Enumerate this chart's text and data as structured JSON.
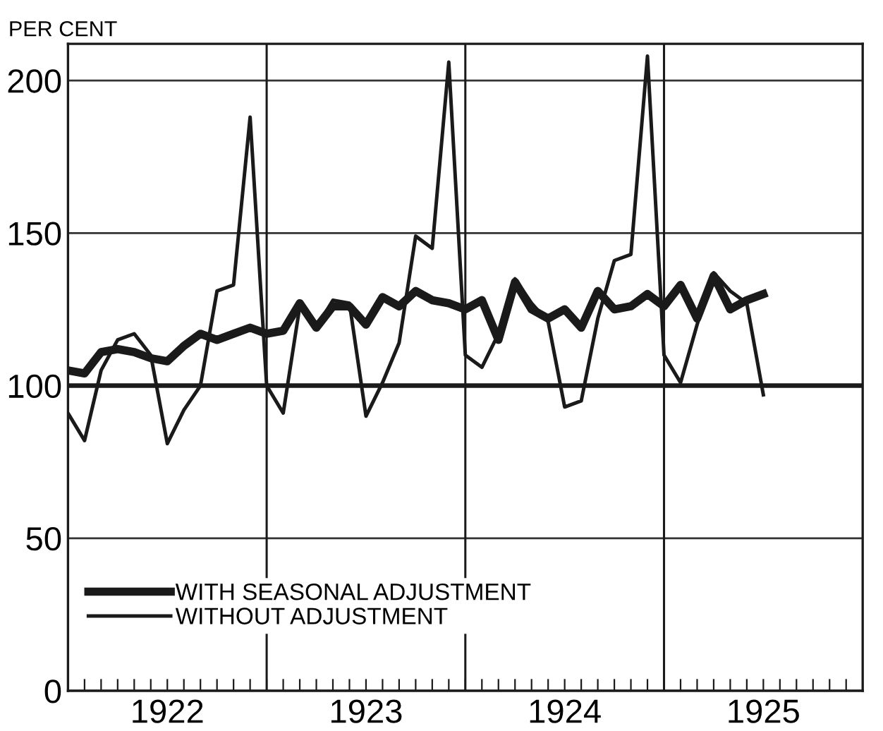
{
  "chart_data": {
    "type": "line",
    "ylabel": "PER CENT",
    "x": [
      "1922-01",
      "1922-02",
      "1922-03",
      "1922-04",
      "1922-05",
      "1922-06",
      "1922-07",
      "1922-08",
      "1922-09",
      "1922-10",
      "1922-11",
      "1922-12",
      "1923-01",
      "1923-02",
      "1923-03",
      "1923-04",
      "1923-05",
      "1923-06",
      "1923-07",
      "1923-08",
      "1923-09",
      "1923-10",
      "1923-11",
      "1923-12",
      "1924-01",
      "1924-02",
      "1924-03",
      "1924-04",
      "1924-05",
      "1924-06",
      "1924-07",
      "1924-08",
      "1924-09",
      "1924-10",
      "1924-11",
      "1924-12",
      "1925-01",
      "1925-02",
      "1925-03",
      "1925-04",
      "1925-05",
      "1925-06",
      "1925-07"
    ],
    "series": [
      {
        "name": "WITH SEASONAL ADJUSTMENT",
        "color": "#1a1a1a",
        "values": [
          105,
          104,
          111,
          112,
          111,
          109,
          108,
          113,
          117,
          115,
          117,
          119,
          117,
          118,
          127,
          119,
          126,
          126,
          120,
          129,
          126,
          131,
          128,
          127,
          125,
          128,
          115,
          134,
          125,
          122,
          125,
          119,
          131,
          125,
          126,
          130,
          126,
          133,
          122,
          136,
          125,
          128,
          130
        ]
      },
      {
        "name": "WITHOUT ADJUSTMENT",
        "color": "#1a1a1a",
        "values": [
          91,
          82,
          105,
          115,
          117,
          110,
          81,
          92,
          100,
          131,
          133,
          188,
          100,
          91,
          126,
          119,
          128,
          127,
          90,
          101,
          114,
          149,
          145,
          206,
          110,
          106,
          117,
          135,
          127,
          121,
          93,
          95,
          122,
          141,
          143,
          208,
          110,
          101,
          120,
          137,
          131,
          127,
          97
        ]
      }
    ],
    "xlim": [
      "1922-01-01",
      "1926-01-01"
    ],
    "xticks": [
      {
        "value": "1922-07-01",
        "label": "1922"
      },
      {
        "value": "1923-07-01",
        "label": "1923"
      },
      {
        "value": "1924-07-01",
        "label": "1924"
      },
      {
        "value": "1925-07-01",
        "label": "1925"
      },
      {
        "value": "1922-02-01",
        "label": null
      },
      {
        "value": "1922-03-01",
        "label": null
      },
      {
        "value": "1922-04-01",
        "label": null
      },
      {
        "value": "1922-05-01",
        "label": null
      },
      {
        "value": "1922-06-01",
        "label": null
      },
      {
        "value": "1922-08-01",
        "label": null
      },
      {
        "value": "1922-09-01",
        "label": null
      },
      {
        "value": "1922-10-01",
        "label": null
      },
      {
        "value": "1922-11-01",
        "label": null
      },
      {
        "value": "1922-12-01",
        "label": null
      },
      {
        "value": "1923-01-01",
        "label": null
      },
      {
        "value": "1923-02-01",
        "label": null
      },
      {
        "value": "1923-03-01",
        "label": null
      },
      {
        "value": "1923-04-01",
        "label": null
      },
      {
        "value": "1923-05-01",
        "label": null
      },
      {
        "value": "1923-06-01",
        "label": null
      },
      {
        "value": "1923-08-01",
        "label": null
      },
      {
        "value": "1923-09-01",
        "label": null
      },
      {
        "value": "1923-10-01",
        "label": null
      },
      {
        "value": "1923-11-01",
        "label": null
      },
      {
        "value": "1923-12-01",
        "label": null
      },
      {
        "value": "1924-01-01",
        "label": null
      },
      {
        "value": "1924-02-01",
        "label": null
      },
      {
        "value": "1924-03-01",
        "label": null
      },
      {
        "value": "1924-04-01",
        "label": null
      },
      {
        "value": "1924-05-01",
        "label": null
      },
      {
        "value": "1924-06-01",
        "label": null
      },
      {
        "value": "1924-08-01",
        "label": null
      },
      {
        "value": "1924-09-01",
        "label": null
      },
      {
        "value": "1924-10-01",
        "label": null
      },
      {
        "value": "1924-11-01",
        "label": null
      },
      {
        "value": "1924-12-01",
        "label": null
      },
      {
        "value": "1925-01-01",
        "label": null
      },
      {
        "value": "1925-02-01",
        "label": null
      },
      {
        "value": "1925-03-01",
        "label": null
      },
      {
        "value": "1925-04-01",
        "label": null
      },
      {
        "value": "1925-05-01",
        "label": null
      },
      {
        "value": "1925-06-01",
        "label": null
      },
      {
        "value": "1925-08-01",
        "label": null
      },
      {
        "value": "1925-09-01",
        "label": null
      },
      {
        "value": "1925-10-01",
        "label": null
      },
      {
        "value": "1925-11-01",
        "label": null
      },
      {
        "value": "1925-12-01",
        "label": null
      }
    ],
    "ylim": [
      0,
      212
    ],
    "yticks": [
      0,
      50,
      100,
      150,
      200
    ],
    "grid": "y",
    "ref_lines": [
      {
        "axis": "y",
        "value": 100,
        "color": "#1a1a1a"
      },
      {
        "axis": "x",
        "value": "1923-01-01",
        "color": "#1a1a1a"
      },
      {
        "axis": "x",
        "value": "1924-01-01",
        "color": "#1a1a1a"
      },
      {
        "axis": "x",
        "value": "1925-01-01",
        "color": "#1a1a1a"
      }
    ],
    "legend": "bottom left",
    "marker": "none",
    "line_style": "solid"
  }
}
